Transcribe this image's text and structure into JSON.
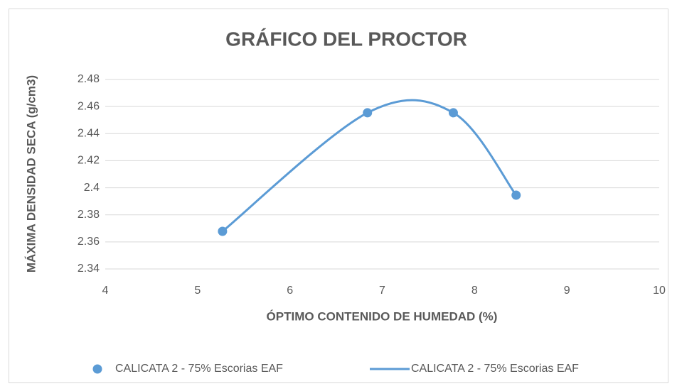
{
  "chart_data": {
    "type": "scatter",
    "title": "GRÁFICO DEL PROCTOR",
    "x_label": "ÓPTIMO CONTENIDO DE HUMEDAD (%)",
    "y_label": "MÁXIMA DENSIDAD SECA (g/cm3)",
    "x": [
      5.27,
      6.84,
      7.77,
      8.45
    ],
    "series": [
      {
        "name": "CALICATA 2 - 75% Escorias EAF",
        "color": "#5b9bd5",
        "mode": "markers",
        "values": [
          2.3678,
          2.4554,
          2.4554,
          2.3945
        ]
      },
      {
        "name": "CALICATA 2 - 75% Escorias EAF",
        "color": "#5b9bd5",
        "mode": "smooth-line",
        "values": [
          2.3678,
          2.4554,
          2.4554,
          2.3945
        ]
      }
    ],
    "xlim": [
      4,
      10
    ],
    "xticks": [
      4,
      5,
      6,
      7,
      8,
      9,
      10
    ],
    "ylim": [
      2.34,
      2.48
    ],
    "yticks": [
      2.34,
      2.36,
      2.38,
      2.4,
      2.42,
      2.44,
      2.46,
      2.48
    ],
    "grid": "y",
    "legend": "bottom"
  }
}
